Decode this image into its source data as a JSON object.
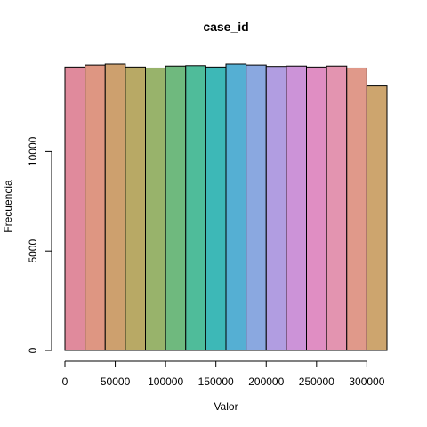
{
  "chart_data": {
    "type": "bar",
    "title": "case_id",
    "xlabel": "Valor",
    "ylabel": "Frecuencia",
    "bin_width": 20000,
    "bins": [
      {
        "start": 0,
        "end": 20000
      },
      {
        "start": 20000,
        "end": 40000
      },
      {
        "start": 40000,
        "end": 60000
      },
      {
        "start": 60000,
        "end": 80000
      },
      {
        "start": 80000,
        "end": 100000
      },
      {
        "start": 100000,
        "end": 120000
      },
      {
        "start": 120000,
        "end": 140000
      },
      {
        "start": 140000,
        "end": 160000
      },
      {
        "start": 160000,
        "end": 180000
      },
      {
        "start": 180000,
        "end": 200000
      },
      {
        "start": 200000,
        "end": 220000
      },
      {
        "start": 220000,
        "end": 240000
      },
      {
        "start": 240000,
        "end": 260000
      },
      {
        "start": 260000,
        "end": 280000
      },
      {
        "start": 280000,
        "end": 300000
      },
      {
        "start": 300000,
        "end": 320000
      }
    ],
    "values": [
      14250,
      14350,
      14400,
      14250,
      14200,
      14300,
      14320,
      14250,
      14400,
      14350,
      14280,
      14300,
      14250,
      14300,
      14200,
      13300
    ],
    "colors": [
      "#E08A9C",
      "#DE9682",
      "#CDA06E",
      "#B8A965",
      "#98B36B",
      "#6FB97E",
      "#4FBC9A",
      "#3DB8B7",
      "#55AFD3",
      "#8AA8E0",
      "#B19DE1",
      "#CC93D8",
      "#E08EC3",
      "#E394B0",
      "#E0998A",
      "#CDA56E"
    ],
    "xlim": [
      0,
      320000
    ],
    "ylim": [
      0,
      14400
    ],
    "x_ticks": [
      0,
      50000,
      100000,
      150000,
      200000,
      250000,
      300000
    ],
    "x_tick_labels": [
      "0",
      "50000",
      "100000",
      "150000",
      "200000",
      "250000",
      "300000"
    ],
    "y_ticks": [
      0,
      5000,
      10000
    ],
    "y_tick_labels": [
      "0",
      "5000",
      "10000"
    ],
    "grid": false
  }
}
